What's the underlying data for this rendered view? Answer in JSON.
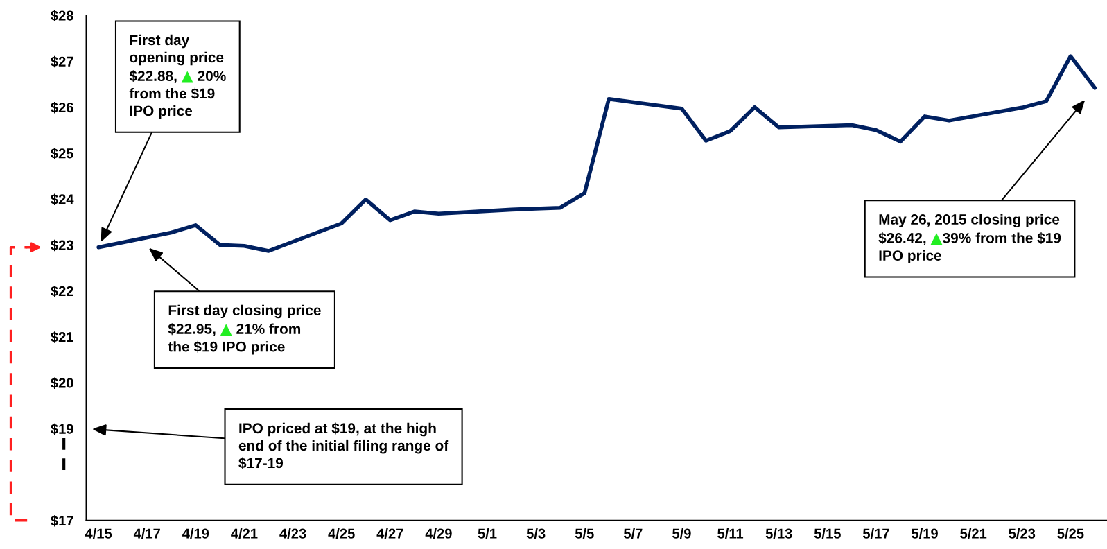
{
  "chart_data": {
    "type": "line",
    "x": [
      "2015-04-15",
      "2015-04-18",
      "2015-04-19",
      "2015-04-20",
      "2015-04-21",
      "2015-04-22",
      "2015-04-25",
      "2015-04-26",
      "2015-04-27",
      "2015-04-28",
      "2015-04-29",
      "2015-05-02",
      "2015-05-03",
      "2015-05-04",
      "2015-05-05",
      "2015-05-06",
      "2015-05-09",
      "2015-05-10",
      "2015-05-11",
      "2015-05-12",
      "2015-05-13",
      "2015-05-16",
      "2015-05-17",
      "2015-05-18",
      "2015-05-19",
      "2015-05-20",
      "2015-05-23",
      "2015-05-24",
      "2015-05-25",
      "2015-05-26"
    ],
    "series": [
      {
        "color": "#002060",
        "values": [
          22.95,
          23.27,
          23.43,
          23.0,
          22.98,
          22.87,
          23.47,
          23.99,
          23.54,
          23.73,
          23.68,
          23.77,
          23.79,
          23.81,
          24.13,
          26.18,
          25.97,
          25.27,
          25.48,
          26.0,
          25.56,
          25.61,
          25.5,
          25.25,
          25.8,
          25.71,
          25.99,
          26.13,
          27.11,
          26.42
        ]
      }
    ],
    "xlim": [
      "2015-04-14T12:00",
      "2015-05-26T12:00"
    ],
    "xticks": [
      {
        "value": "2015-04-15",
        "label": "4/15"
      },
      {
        "value": "2015-04-17",
        "label": "4/17"
      },
      {
        "value": "2015-04-19",
        "label": "4/19"
      },
      {
        "value": "2015-04-21",
        "label": "4/21"
      },
      {
        "value": "2015-04-23",
        "label": "4/23"
      },
      {
        "value": "2015-04-25",
        "label": "4/25"
      },
      {
        "value": "2015-04-27",
        "label": "4/27"
      },
      {
        "value": "2015-04-29",
        "label": "4/29"
      },
      {
        "value": "2015-05-01",
        "label": "5/1"
      },
      {
        "value": "2015-05-03",
        "label": "5/3"
      },
      {
        "value": "2015-05-05",
        "label": "5/5"
      },
      {
        "value": "2015-05-07",
        "label": "5/7"
      },
      {
        "value": "2015-05-09",
        "label": "5/9"
      },
      {
        "value": "2015-05-11",
        "label": "5/11"
      },
      {
        "value": "2015-05-13",
        "label": "5/13"
      },
      {
        "value": "2015-05-15",
        "label": "5/15"
      },
      {
        "value": "2015-05-17",
        "label": "5/17"
      },
      {
        "value": "2015-05-19",
        "label": "5/19"
      },
      {
        "value": "2015-05-21",
        "label": "5/21"
      },
      {
        "value": "2015-05-23",
        "label": "5/23"
      },
      {
        "value": "2015-05-25",
        "label": "5/25"
      }
    ],
    "ylim": [
      17,
      28
    ],
    "yticks": [
      {
        "value": 17,
        "label": "$17"
      },
      {
        "value": 19,
        "label": "$19"
      },
      {
        "value": 20,
        "label": "$20"
      },
      {
        "value": 21,
        "label": "$21"
      },
      {
        "value": 22,
        "label": "$22"
      },
      {
        "value": 23,
        "label": "$23"
      },
      {
        "value": 24,
        "label": "$24"
      },
      {
        "value": 25,
        "label": "$25"
      },
      {
        "value": 26,
        "label": "$26"
      },
      {
        "value": 27,
        "label": "$27"
      },
      {
        "value": 28,
        "label": "$28"
      }
    ],
    "grid": false,
    "marker": "none",
    "line_style": "solid",
    "annotations": [
      "First day\nopening price\n$22.88, ▲ 20%\nfrom the $19\nIPO price",
      "First day closing price\n$22.95, ▲ 21% from\nthe $19 IPO price",
      "IPO priced at $19, at the high\nend of the initial filing range of\n$17-19",
      "May 26, 2015 closing price\n$26.42, ▲39% from the $19\nIPO price"
    ]
  }
}
